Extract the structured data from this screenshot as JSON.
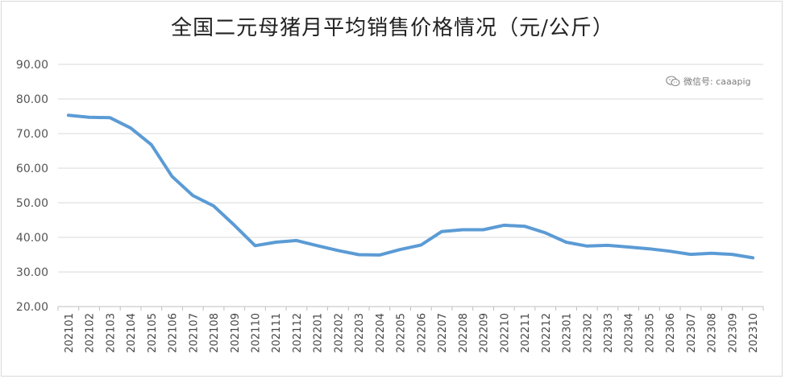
{
  "title": "全国二元母猪月平均销售价格情况（元/公斤）",
  "watermark": {
    "text": "微信号: caaapig",
    "icon": "wechat-icon"
  },
  "colors": {
    "line": "#5b9bd5",
    "grid": "#d9d9d9",
    "axis": "#bfbfbf"
  },
  "chart_data": {
    "type": "line",
    "title": "全国二元母猪月平均销售价格情况（元/公斤）",
    "xlabel": "",
    "ylabel": "",
    "ylim": [
      20,
      90
    ],
    "yticks": [
      "20.00",
      "30.00",
      "40.00",
      "50.00",
      "60.00",
      "70.00",
      "80.00",
      "90.00"
    ],
    "grid": true,
    "legend": "none",
    "categories": [
      "202101",
      "202102",
      "202103",
      "202104",
      "202105",
      "202106",
      "202107",
      "202108",
      "202109",
      "202110",
      "202111",
      "202112",
      "202201",
      "202202",
      "202203",
      "202204",
      "202205",
      "202206",
      "202207",
      "202208",
      "202209",
      "202210",
      "202211",
      "202212",
      "202301",
      "202302",
      "202303",
      "202304",
      "202305",
      "202306",
      "202307",
      "202308",
      "202309",
      "202310"
    ],
    "series": [
      {
        "values": [
          75.3,
          74.7,
          74.6,
          71.6,
          66.8,
          57.6,
          52.1,
          49.1,
          43.5,
          37.6,
          38.6,
          39.1,
          37.6,
          36.2,
          35.0,
          34.9,
          36.5,
          37.8,
          41.7,
          42.2,
          42.2,
          43.5,
          43.2,
          41.3,
          38.6,
          37.5,
          37.7,
          37.2,
          36.7,
          36.0,
          35.1,
          35.4,
          35.1,
          34.1
        ]
      }
    ]
  }
}
